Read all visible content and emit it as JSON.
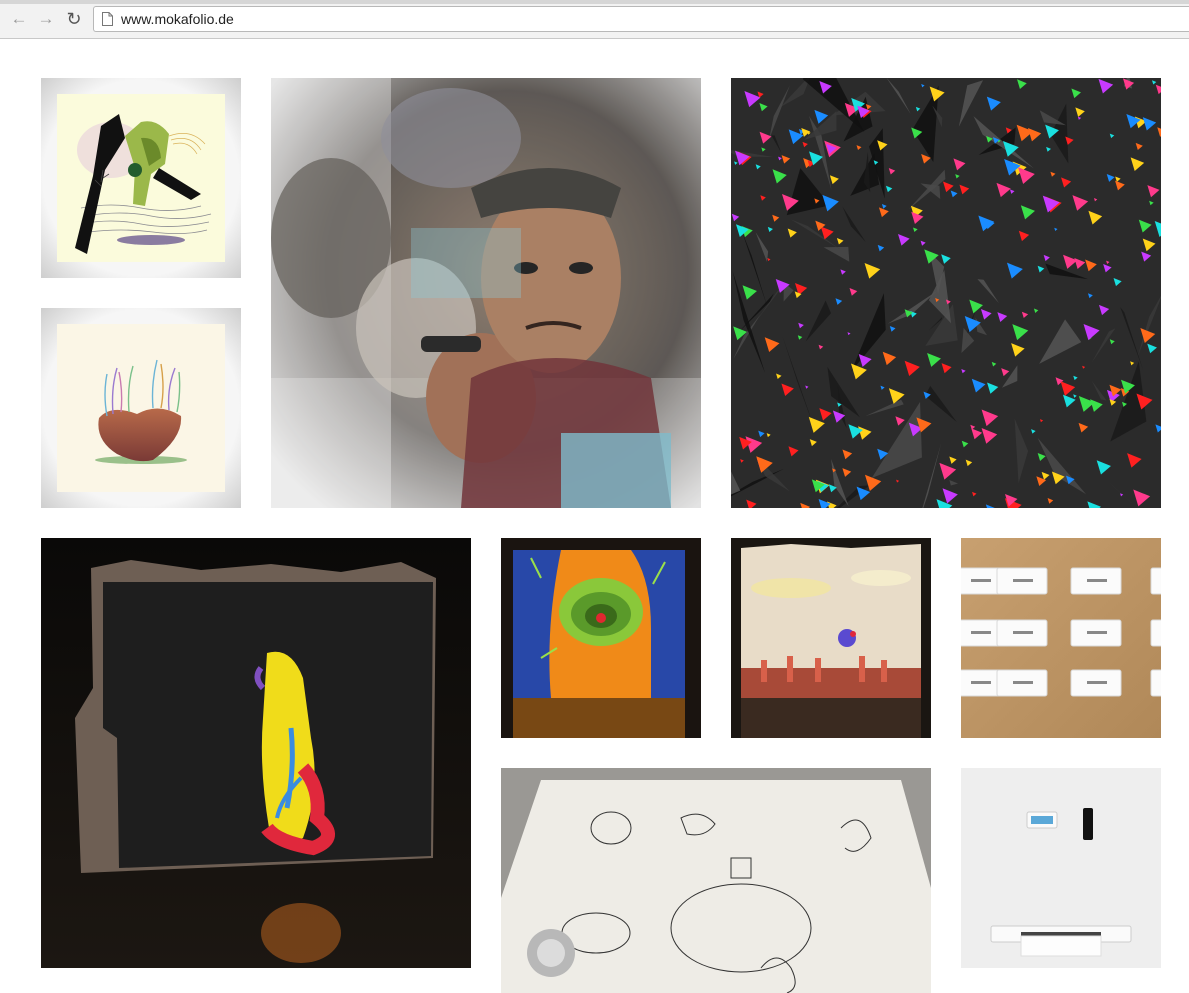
{
  "browser": {
    "url": "www.mokafolio.de",
    "back_icon": "arrow-left-icon",
    "forward_icon": "arrow-right-icon",
    "reload_icon": "reload-icon",
    "page_icon": "document-icon"
  },
  "gallery": {
    "tiles": [
      {
        "name": "artwork-abstract-figure-landscape",
        "icon": "illustration-thumbnail"
      },
      {
        "name": "artwork-heart-rock-with-plants",
        "icon": "illustration-thumbnail"
      },
      {
        "name": "artwork-glitch-portrait-collage",
        "icon": "photo-thumbnail"
      },
      {
        "name": "artwork-colorful-shards",
        "icon": "generative-thumbnail"
      },
      {
        "name": "artwork-projection-yellow-creature",
        "icon": "photo-thumbnail"
      },
      {
        "name": "artwork-projection-green-eye",
        "icon": "photo-thumbnail"
      },
      {
        "name": "artwork-projection-landscape-scene",
        "icon": "photo-thumbnail"
      },
      {
        "name": "artwork-white-cards-on-wood",
        "icon": "photo-thumbnail"
      },
      {
        "name": "artwork-drawing-robot-paper",
        "icon": "photo-thumbnail"
      },
      {
        "name": "artwork-wall-device-printer",
        "icon": "photo-thumbnail"
      }
    ]
  },
  "colors": {
    "page_background": "#ffffff",
    "chrome_background": "#f2f2f2",
    "shards_background": "#2b2b2b",
    "projection_background": "#1a1612"
  }
}
